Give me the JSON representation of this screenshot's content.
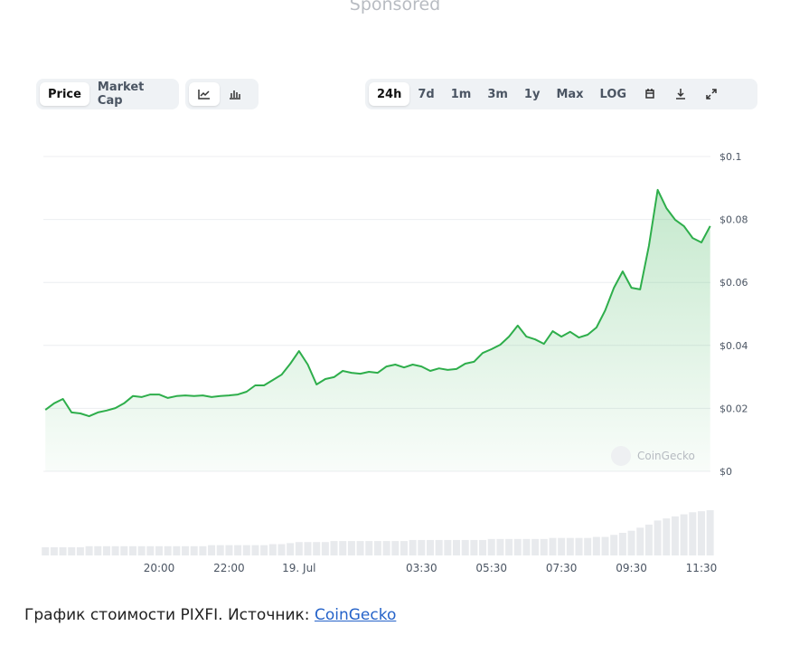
{
  "sponsored": "Sponsored",
  "toolbar": {
    "modes": [
      "Price",
      "Market Cap"
    ],
    "ranges": [
      "24h",
      "7d",
      "1m",
      "3m",
      "1y",
      "Max",
      "LOG"
    ]
  },
  "watermark": "CoinGecko",
  "caption": {
    "text": "График стоимости PIXFI. Источник: ",
    "link": "CoinGecko"
  },
  "chart_data": {
    "type": "line",
    "color": "#2eae4b",
    "grid": true,
    "categories": [
      null,
      null,
      null,
      null,
      null,
      null,
      null,
      null,
      null,
      null,
      null,
      null,
      null,
      "20:00",
      null,
      null,
      null,
      null,
      null,
      null,
      null,
      "22:00",
      null,
      null,
      null,
      null,
      null,
      null,
      null,
      "19. Jul",
      null,
      null,
      null,
      null,
      null,
      null,
      null,
      null,
      null,
      null,
      null,
      null,
      null,
      "03:30",
      null,
      null,
      null,
      null,
      null,
      null,
      null,
      "05:30",
      null,
      null,
      null,
      null,
      null,
      null,
      null,
      "07:30",
      null,
      null,
      null,
      null,
      null,
      null,
      null,
      "09:30",
      null,
      null,
      null,
      null,
      null,
      null,
      null,
      "11:30",
      null
    ],
    "values": [
      0.0195,
      0.0216,
      0.023,
      0.0187,
      0.0184,
      0.0175,
      0.0187,
      0.0193,
      0.0201,
      0.0216,
      0.0239,
      0.0236,
      0.0244,
      0.0244,
      0.0233,
      0.0239,
      0.0241,
      0.0239,
      0.0241,
      0.0236,
      0.0239,
      0.0241,
      0.0244,
      0.0253,
      0.0273,
      0.0273,
      0.029,
      0.0307,
      0.0342,
      0.0382,
      0.0339,
      0.0276,
      0.0293,
      0.0299,
      0.0319,
      0.0313,
      0.031,
      0.0316,
      0.0313,
      0.0333,
      0.0339,
      0.033,
      0.0339,
      0.0333,
      0.0319,
      0.0327,
      0.0322,
      0.0325,
      0.0342,
      0.0348,
      0.0376,
      0.0388,
      0.0402,
      0.0428,
      0.0463,
      0.0428,
      0.0419,
      0.0405,
      0.0445,
      0.0428,
      0.0443,
      0.0425,
      0.0434,
      0.0457,
      0.0511,
      0.0583,
      0.0635,
      0.0583,
      0.0578,
      0.0716,
      0.0894,
      0.0836,
      0.0799,
      0.0779,
      0.0741,
      0.0727,
      0.0779
    ],
    "volume": [
      8,
      8,
      8,
      8,
      8,
      9,
      9,
      9,
      9,
      9,
      9,
      9,
      9,
      9,
      9,
      9,
      9,
      9,
      9,
      10,
      10,
      10,
      10,
      10,
      10,
      10,
      11,
      11,
      12,
      13,
      13,
      13,
      13,
      14,
      14,
      14,
      14,
      14,
      14,
      14,
      14,
      14,
      15,
      15,
      15,
      15,
      15,
      15,
      15,
      15,
      15,
      16,
      16,
      16,
      16,
      16,
      16,
      16,
      17,
      17,
      17,
      17,
      17,
      18,
      18,
      20,
      22,
      24,
      27,
      30,
      34,
      36,
      38,
      40,
      42,
      43,
      44
    ],
    "ylim": [
      0,
      0.1
    ],
    "yticks": [
      {
        "value": 0,
        "label": "$0"
      },
      {
        "value": 0.02,
        "label": "$0.02"
      },
      {
        "value": 0.04,
        "label": "$0.04"
      },
      {
        "value": 0.06,
        "label": "$0.06"
      },
      {
        "value": 0.08,
        "label": "$0.08"
      },
      {
        "value": 0.1,
        "label": "$0.1"
      }
    ]
  }
}
